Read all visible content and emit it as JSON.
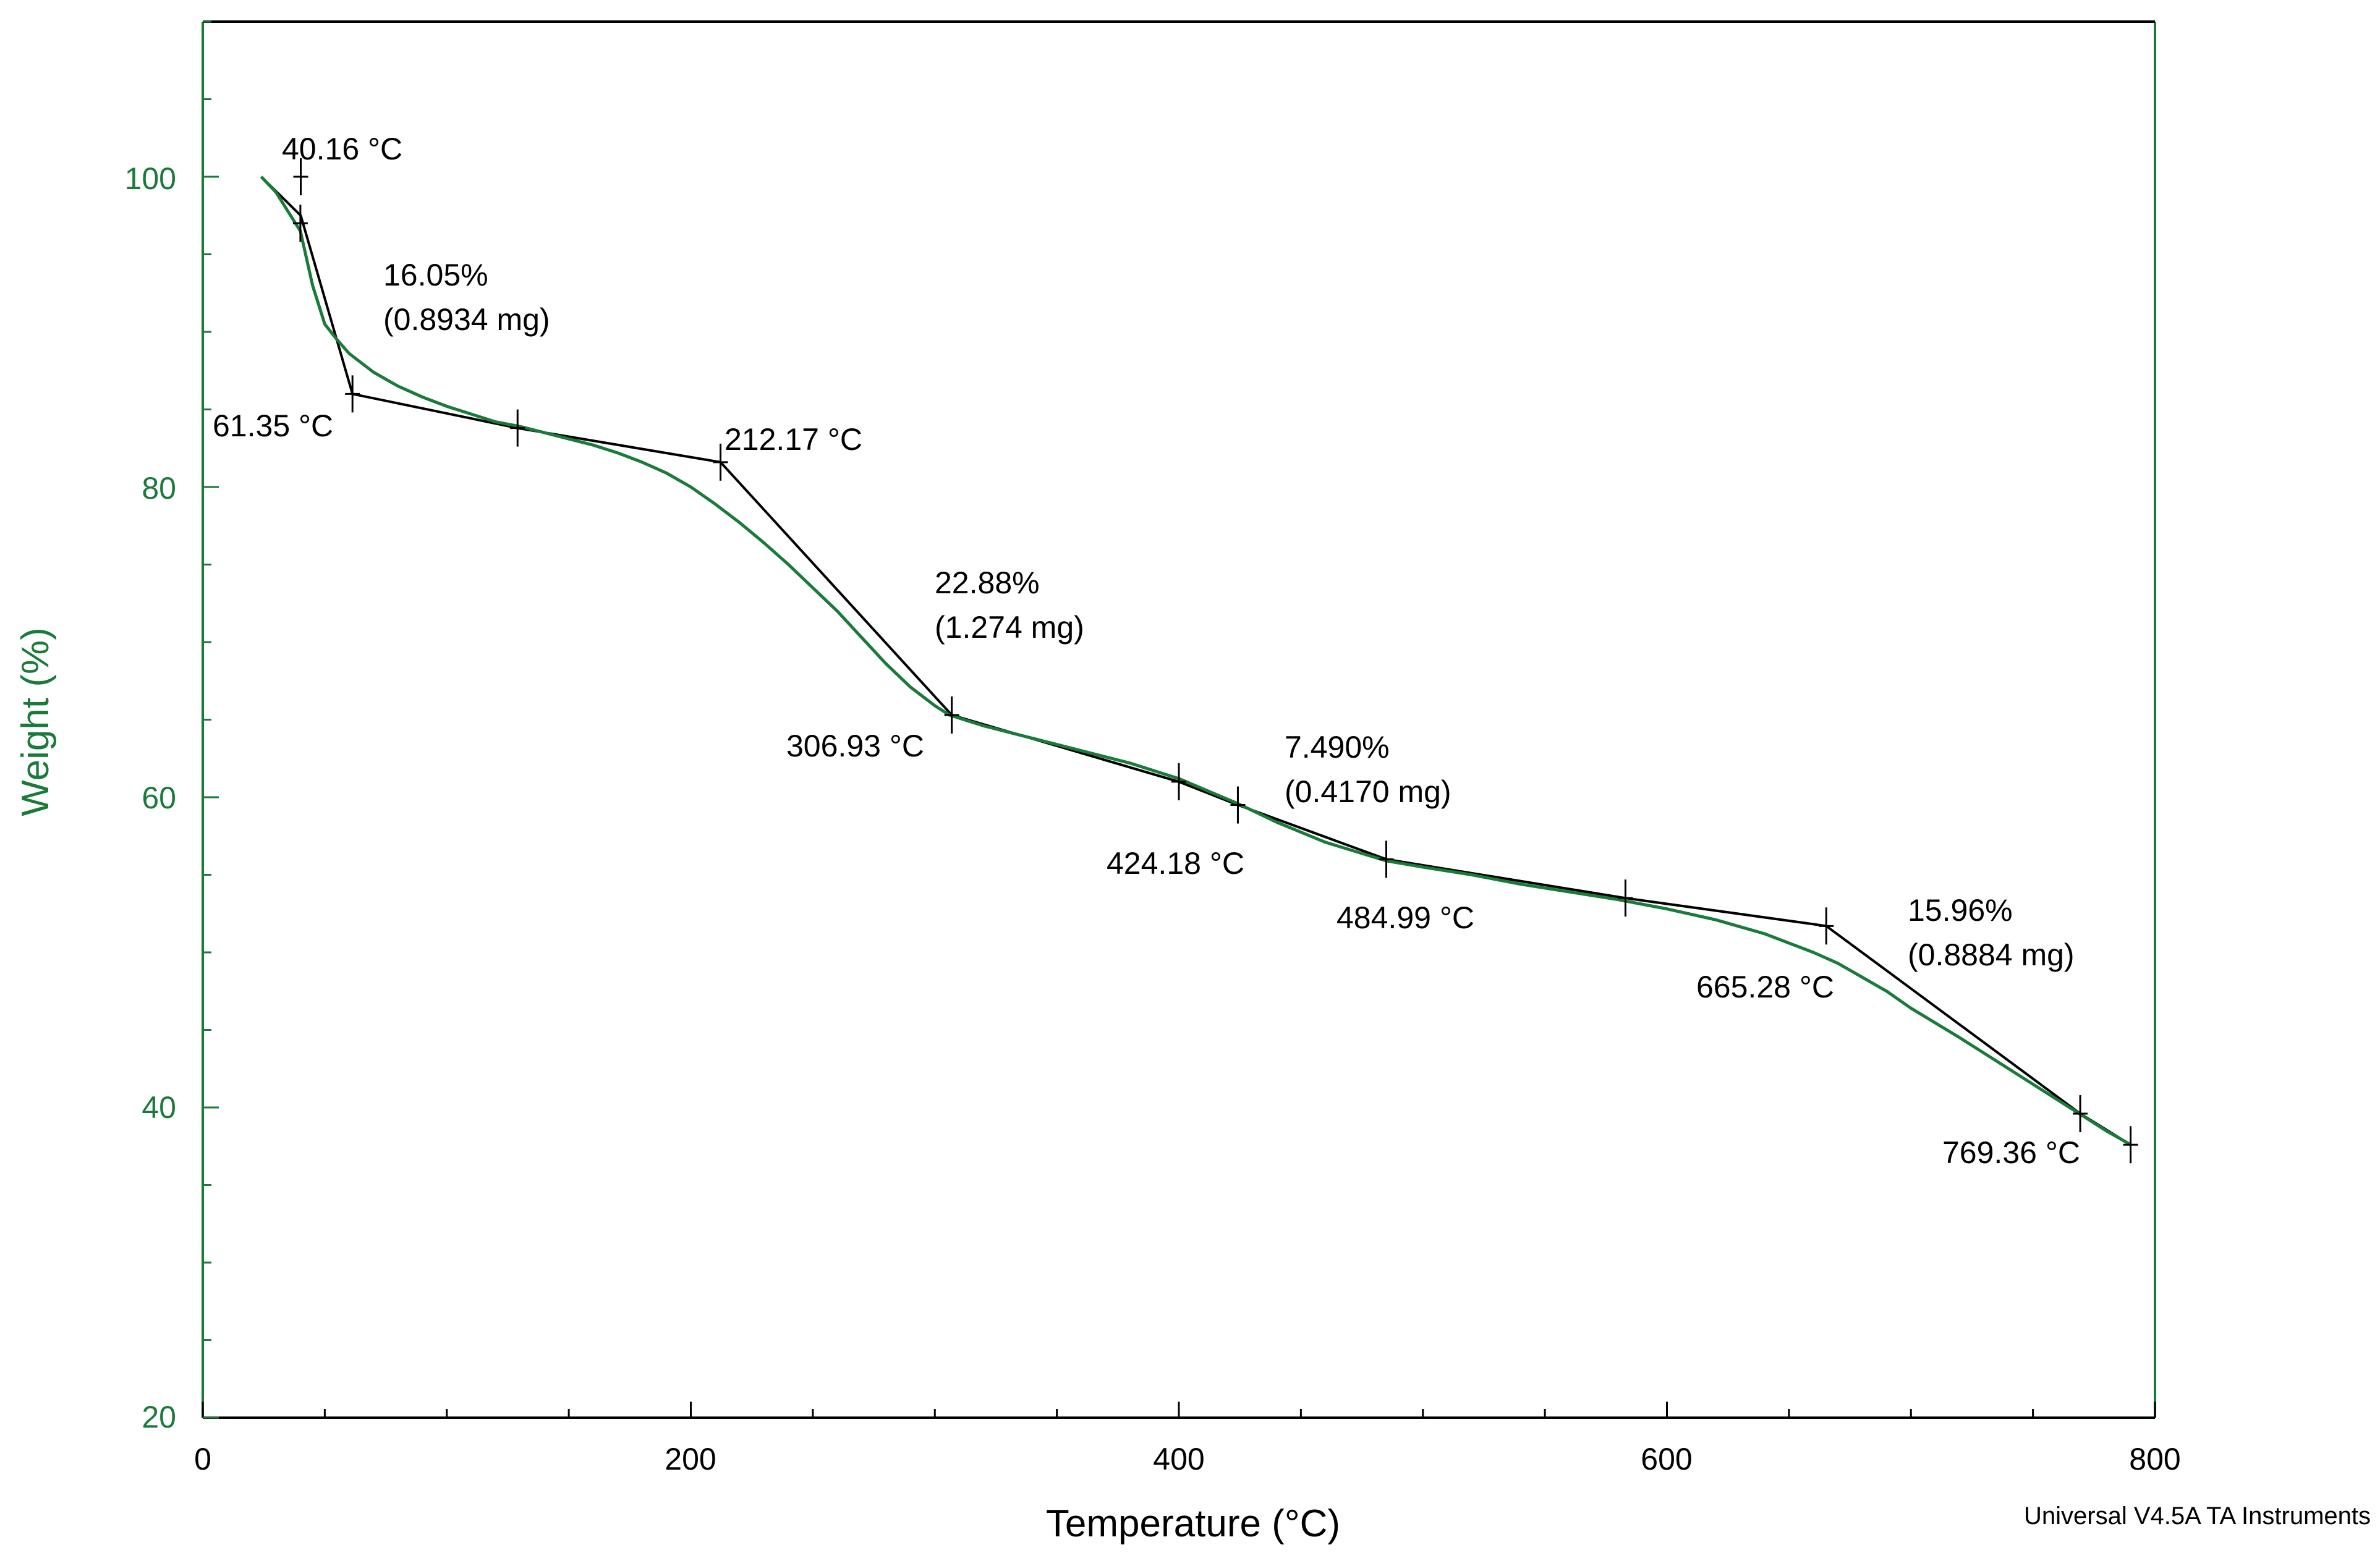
{
  "chart_data": {
    "type": "line",
    "title": "",
    "xlabel": "Temperature (°C)",
    "ylabel": "Weight (%)",
    "xlim": [
      0,
      800
    ],
    "ylim": [
      20,
      110
    ],
    "x_ticks": [
      0,
      200,
      400,
      600,
      800
    ],
    "x_tick_labels": [
      "0",
      "200",
      "400",
      "600",
      "800"
    ],
    "y_ticks": [
      20,
      40,
      60,
      80,
      100
    ],
    "y_tick_labels": [
      "20",
      "40",
      "60",
      "80",
      "100"
    ],
    "grid": false,
    "series": [
      {
        "name": "Weight",
        "color": "#1a7a3a",
        "x": [
          24,
          30,
          36,
          40,
          45,
          50,
          55,
          60,
          70,
          80,
          90,
          100,
          110,
          120,
          130,
          140,
          150,
          160,
          170,
          180,
          190,
          200,
          210,
          220,
          230,
          240,
          250,
          260,
          270,
          280,
          290,
          300,
          306,
          312,
          320,
          340,
          360,
          380,
          400,
          424,
          440,
          460,
          485,
          500,
          520,
          540,
          560,
          580,
          600,
          620,
          640,
          660,
          670,
          680,
          690,
          700,
          720,
          740,
          760,
          770,
          780,
          790
        ],
        "y": [
          100.0,
          99.0,
          97.5,
          96.5,
          93.0,
          90.5,
          89.5,
          88.6,
          87.4,
          86.5,
          85.8,
          85.2,
          84.7,
          84.2,
          83.9,
          83.5,
          83.1,
          82.7,
          82.2,
          81.6,
          80.9,
          80.0,
          78.9,
          77.7,
          76.4,
          75.0,
          73.5,
          72.0,
          70.3,
          68.6,
          67.1,
          65.9,
          65.3,
          65.0,
          64.6,
          63.8,
          63.0,
          62.2,
          61.2,
          59.6,
          58.4,
          57.1,
          55.9,
          55.5,
          55.0,
          54.4,
          53.9,
          53.4,
          52.8,
          52.1,
          51.2,
          50.0,
          49.3,
          48.4,
          47.5,
          46.4,
          44.5,
          42.5,
          40.5,
          39.5,
          38.5,
          37.6
        ]
      }
    ],
    "annotations": [
      {
        "text": "40.16 °C"
      },
      {
        "text": "16.05%"
      },
      {
        "text": "(0.8934 mg)"
      },
      {
        "text": "61.35 °C"
      },
      {
        "text": "212.17 °C"
      },
      {
        "text": "22.88%"
      },
      {
        "text": "(1.274 mg)"
      },
      {
        "text": "306.93 °C"
      },
      {
        "text": "7.490%"
      },
      {
        "text": "(0.4170 mg)"
      },
      {
        "text": "424.18 °C"
      },
      {
        "text": "484.99 °C"
      },
      {
        "text": "15.96%"
      },
      {
        "text": "(0.8884 mg)"
      },
      {
        "text": "665.28 °C"
      },
      {
        "text": "769.36 °C"
      }
    ],
    "analysis_markers": [
      {
        "x": 40.16,
        "y": 100.0
      },
      {
        "x": 40.0,
        "y": 97.0
      },
      {
        "x": 61.35,
        "y": 86.0
      },
      {
        "x": 129.0,
        "y": 83.8
      },
      {
        "x": 212.17,
        "y": 81.6
      },
      {
        "x": 306.93,
        "y": 65.3
      },
      {
        "x": 400.0,
        "y": 61.0
      },
      {
        "x": 424.18,
        "y": 59.5
      },
      {
        "x": 484.99,
        "y": 56.0
      },
      {
        "x": 583.0,
        "y": 53.5
      },
      {
        "x": 665.28,
        "y": 51.7
      },
      {
        "x": 769.36,
        "y": 39.6
      },
      {
        "x": 790.0,
        "y": 37.6
      }
    ],
    "tangent_lines": [
      [
        [
          24,
          100.0
        ],
        [
          40.16,
          97.5
        ],
        [
          61.35,
          86.0
        ]
      ],
      [
        [
          61.35,
          86.0
        ],
        [
          129.0,
          83.8
        ],
        [
          212.17,
          81.6
        ]
      ],
      [
        [
          212.17,
          81.6
        ],
        [
          306.93,
          65.3
        ]
      ],
      [
        [
          306.93,
          65.3
        ],
        [
          400.0,
          61.0
        ],
        [
          424.18,
          59.5
        ]
      ],
      [
        [
          424.18,
          59.5
        ],
        [
          484.99,
          56.0
        ]
      ],
      [
        [
          484.99,
          56.0
        ],
        [
          583.0,
          53.5
        ],
        [
          665.28,
          51.7
        ]
      ],
      [
        [
          665.28,
          51.7
        ],
        [
          769.36,
          39.6
        ],
        [
          790.0,
          37.6
        ]
      ]
    ],
    "credit": "Universal V4.5A TA Instruments"
  }
}
